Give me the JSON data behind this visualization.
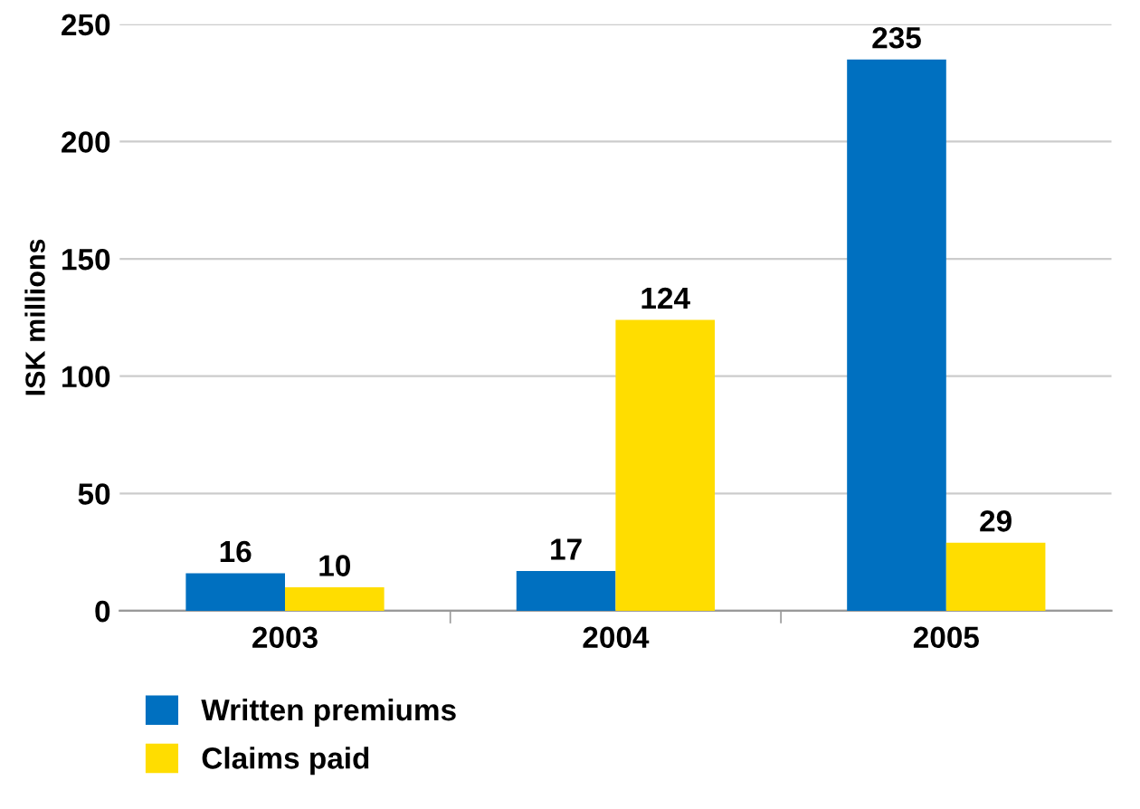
{
  "chart_data": {
    "type": "bar",
    "ylabel": "ISK millions",
    "categories": [
      "2003",
      "2004",
      "2005"
    ],
    "series": [
      {
        "name": "Written premiums",
        "color": "#0070c0",
        "values": [
          16,
          17,
          235
        ]
      },
      {
        "name": "Claims paid",
        "color": "#ffdd00",
        "values": [
          10,
          124,
          29
        ]
      }
    ],
    "ylim": [
      0,
      250
    ],
    "yticks": [
      0,
      50,
      100,
      150,
      200,
      250
    ],
    "grid": "y",
    "legend": "bottom",
    "data_labels": true
  }
}
